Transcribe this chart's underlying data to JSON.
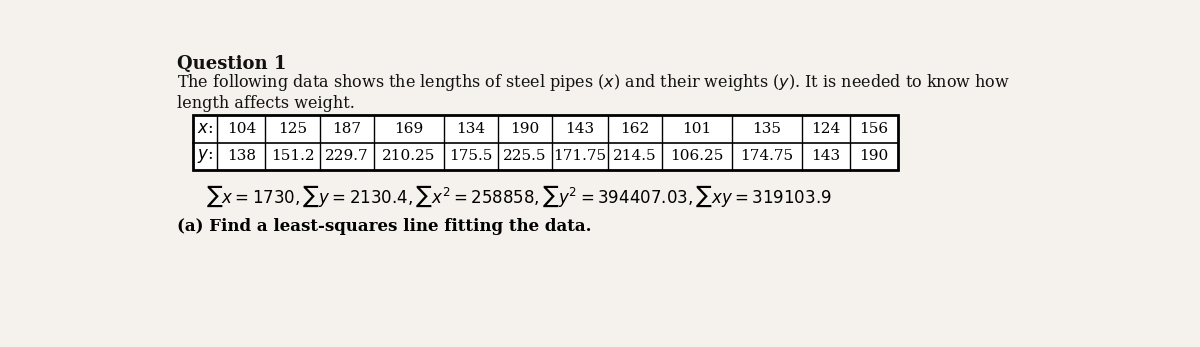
{
  "title": "Question 1",
  "intro_line1": "The following data shows the lengths of steel pipes ",
  "intro_line1_italic": "x",
  "intro_line1_mid": " and their weights ",
  "intro_line1_italic2": "y",
  "intro_line1_end": ". It is needed to know how",
  "intro_line2": "length affects weight.",
  "x_label": "x:",
  "y_label": "y:",
  "x_values": [
    "104",
    "125",
    "187",
    "169",
    "134",
    "190",
    "143",
    "162",
    "101",
    "135",
    "124",
    "156"
  ],
  "y_values": [
    "138",
    "151.2",
    "229.7",
    "210.25",
    "175.5",
    "225.5",
    "171.75",
    "214.5",
    "106.25",
    "174.75",
    "143",
    "190"
  ],
  "part_a": "(a) Find a least-squares line fitting the data.",
  "bg_color": "#f5f2ed",
  "table_bg": "#ffffff",
  "text_color": "#111111",
  "fig_width": 12.0,
  "fig_height": 3.47,
  "dpi": 100
}
